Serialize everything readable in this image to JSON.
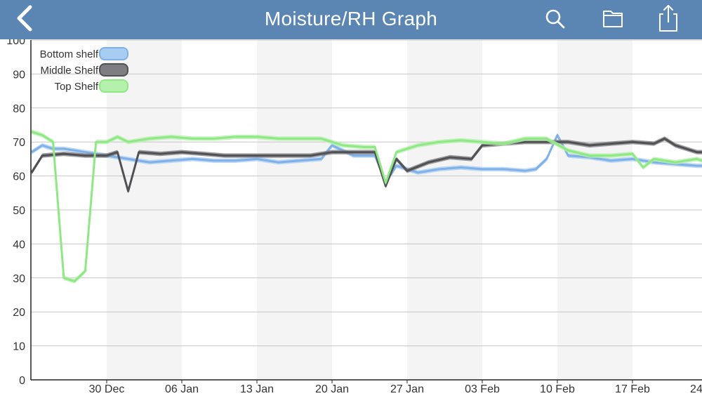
{
  "header": {
    "title": "Moisture/RH Graph",
    "back_icon": "chevron-left-icon",
    "search_icon": "search-icon",
    "folder_icon": "folder-icon",
    "share_icon": "share-icon",
    "bar_color": "#5b85b2"
  },
  "chart_data": {
    "type": "area",
    "title": "",
    "xlabel": "",
    "ylabel": "",
    "ylim": [
      0,
      100
    ],
    "y_ticks": [
      0,
      10,
      20,
      30,
      40,
      50,
      60,
      70,
      80,
      90,
      100
    ],
    "x_tick_labels": [
      "30 Dec",
      "06 Jan",
      "13 Jan",
      "20 Jan",
      "27 Jan",
      "03 Feb",
      "10 Feb",
      "17 Feb",
      "24 Feb"
    ],
    "x_start": "23 Dec",
    "x_end": "24 Feb",
    "grid": "horizontal",
    "weekly_shading": true,
    "legend_position": "top-left",
    "series": [
      {
        "name": "Bottom shelf",
        "color": "#7fb0e8",
        "fill": "#a8cdf3",
        "points": [
          {
            "x": "23 Dec",
            "y": 67
          },
          {
            "x": "24 Dec",
            "y": 69
          },
          {
            "x": "25 Dec",
            "y": 68
          },
          {
            "x": "26 Dec",
            "y": 68
          },
          {
            "x": "28 Dec",
            "y": 67
          },
          {
            "x": "30 Dec",
            "y": 66
          },
          {
            "x": "01 Jan",
            "y": 65
          },
          {
            "x": "03 Jan",
            "y": 64
          },
          {
            "x": "05 Jan",
            "y": 64.5
          },
          {
            "x": "07 Jan",
            "y": 65
          },
          {
            "x": "09 Jan",
            "y": 64.5
          },
          {
            "x": "11 Jan",
            "y": 64.5
          },
          {
            "x": "13 Jan",
            "y": 65
          },
          {
            "x": "15 Jan",
            "y": 64
          },
          {
            "x": "17 Jan",
            "y": 64.5
          },
          {
            "x": "19 Jan",
            "y": 65
          },
          {
            "x": "20 Jan",
            "y": 69
          },
          {
            "x": "22 Jan",
            "y": 66
          },
          {
            "x": "24 Jan",
            "y": 66
          },
          {
            "x": "25 Jan",
            "y": 58
          },
          {
            "x": "26 Jan",
            "y": 63
          },
          {
            "x": "28 Jan",
            "y": 61
          },
          {
            "x": "30 Jan",
            "y": 62
          },
          {
            "x": "01 Feb",
            "y": 62.5
          },
          {
            "x": "03 Feb",
            "y": 62
          },
          {
            "x": "05 Feb",
            "y": 62
          },
          {
            "x": "07 Feb",
            "y": 61.5
          },
          {
            "x": "08 Feb",
            "y": 62
          },
          {
            "x": "09 Feb",
            "y": 65
          },
          {
            "x": "10 Feb",
            "y": 72
          },
          {
            "x": "11 Feb",
            "y": 66
          },
          {
            "x": "13 Feb",
            "y": 65.5
          },
          {
            "x": "15 Feb",
            "y": 64.5
          },
          {
            "x": "17 Feb",
            "y": 65
          },
          {
            "x": "19 Feb",
            "y": 64
          },
          {
            "x": "21 Feb",
            "y": 63.5
          },
          {
            "x": "23 Feb",
            "y": 63
          },
          {
            "x": "24 Feb",
            "y": 63
          }
        ]
      },
      {
        "name": "Middle Shelf",
        "color": "#505055",
        "fill": "#7d7d82",
        "points": [
          {
            "x": "23 Dec",
            "y": 61
          },
          {
            "x": "24 Dec",
            "y": 66
          },
          {
            "x": "26 Dec",
            "y": 66.5
          },
          {
            "x": "28 Dec",
            "y": 66
          },
          {
            "x": "30 Dec",
            "y": 66
          },
          {
            "x": "31 Dec",
            "y": 67
          },
          {
            "x": "01 Jan",
            "y": 55.5
          },
          {
            "x": "02 Jan",
            "y": 67
          },
          {
            "x": "04 Jan",
            "y": 66.5
          },
          {
            "x": "06 Jan",
            "y": 67
          },
          {
            "x": "08 Jan",
            "y": 66.5
          },
          {
            "x": "10 Jan",
            "y": 66
          },
          {
            "x": "12 Jan",
            "y": 66
          },
          {
            "x": "14 Jan",
            "y": 66
          },
          {
            "x": "16 Jan",
            "y": 66
          },
          {
            "x": "18 Jan",
            "y": 66
          },
          {
            "x": "20 Jan",
            "y": 67
          },
          {
            "x": "22 Jan",
            "y": 67
          },
          {
            "x": "24 Jan",
            "y": 67
          },
          {
            "x": "25 Jan",
            "y": 57
          },
          {
            "x": "26 Jan",
            "y": 65
          },
          {
            "x": "27 Jan",
            "y": 61.5
          },
          {
            "x": "29 Jan",
            "y": 64
          },
          {
            "x": "31 Jan",
            "y": 65.5
          },
          {
            "x": "02 Feb",
            "y": 65
          },
          {
            "x": "03 Feb",
            "y": 69
          },
          {
            "x": "05 Feb",
            "y": 69.5
          },
          {
            "x": "07 Feb",
            "y": 70
          },
          {
            "x": "09 Feb",
            "y": 70
          },
          {
            "x": "11 Feb",
            "y": 70
          },
          {
            "x": "13 Feb",
            "y": 69
          },
          {
            "x": "15 Feb",
            "y": 69.5
          },
          {
            "x": "17 Feb",
            "y": 70
          },
          {
            "x": "19 Feb",
            "y": 69.5
          },
          {
            "x": "20 Feb",
            "y": 71
          },
          {
            "x": "21 Feb",
            "y": 69
          },
          {
            "x": "23 Feb",
            "y": 67
          },
          {
            "x": "24 Feb",
            "y": 67
          }
        ]
      },
      {
        "name": "Top Shelf",
        "color": "#8ee884",
        "fill": "#b5f0ad",
        "points": [
          {
            "x": "23 Dec",
            "y": 73
          },
          {
            "x": "24 Dec",
            "y": 72
          },
          {
            "x": "25 Dec",
            "y": 70
          },
          {
            "x": "26 Dec",
            "y": 30
          },
          {
            "x": "27 Dec",
            "y": 29
          },
          {
            "x": "28 Dec",
            "y": 32
          },
          {
            "x": "29 Dec",
            "y": 70
          },
          {
            "x": "30 Dec",
            "y": 70
          },
          {
            "x": "31 Dec",
            "y": 71.5
          },
          {
            "x": "01 Jan",
            "y": 70
          },
          {
            "x": "03 Jan",
            "y": 71
          },
          {
            "x": "05 Jan",
            "y": 71.5
          },
          {
            "x": "07 Jan",
            "y": 71
          },
          {
            "x": "09 Jan",
            "y": 71
          },
          {
            "x": "11 Jan",
            "y": 71.5
          },
          {
            "x": "13 Jan",
            "y": 71.5
          },
          {
            "x": "15 Jan",
            "y": 71
          },
          {
            "x": "17 Jan",
            "y": 71
          },
          {
            "x": "19 Jan",
            "y": 71
          },
          {
            "x": "21 Jan",
            "y": 69
          },
          {
            "x": "23 Jan",
            "y": 68.5
          },
          {
            "x": "24 Jan",
            "y": 68.5
          },
          {
            "x": "25 Jan",
            "y": 58
          },
          {
            "x": "26 Jan",
            "y": 67
          },
          {
            "x": "28 Jan",
            "y": 69
          },
          {
            "x": "30 Jan",
            "y": 70
          },
          {
            "x": "01 Feb",
            "y": 70.5
          },
          {
            "x": "03 Feb",
            "y": 70
          },
          {
            "x": "05 Feb",
            "y": 69.5
          },
          {
            "x": "07 Feb",
            "y": 71
          },
          {
            "x": "09 Feb",
            "y": 71
          },
          {
            "x": "11 Feb",
            "y": 67.5
          },
          {
            "x": "13 Feb",
            "y": 66
          },
          {
            "x": "15 Feb",
            "y": 66
          },
          {
            "x": "17 Feb",
            "y": 66.5
          },
          {
            "x": "18 Feb",
            "y": 62.5
          },
          {
            "x": "19 Feb",
            "y": 65
          },
          {
            "x": "21 Feb",
            "y": 64
          },
          {
            "x": "23 Feb",
            "y": 65
          },
          {
            "x": "24 Feb",
            "y": 64
          }
        ]
      }
    ]
  }
}
